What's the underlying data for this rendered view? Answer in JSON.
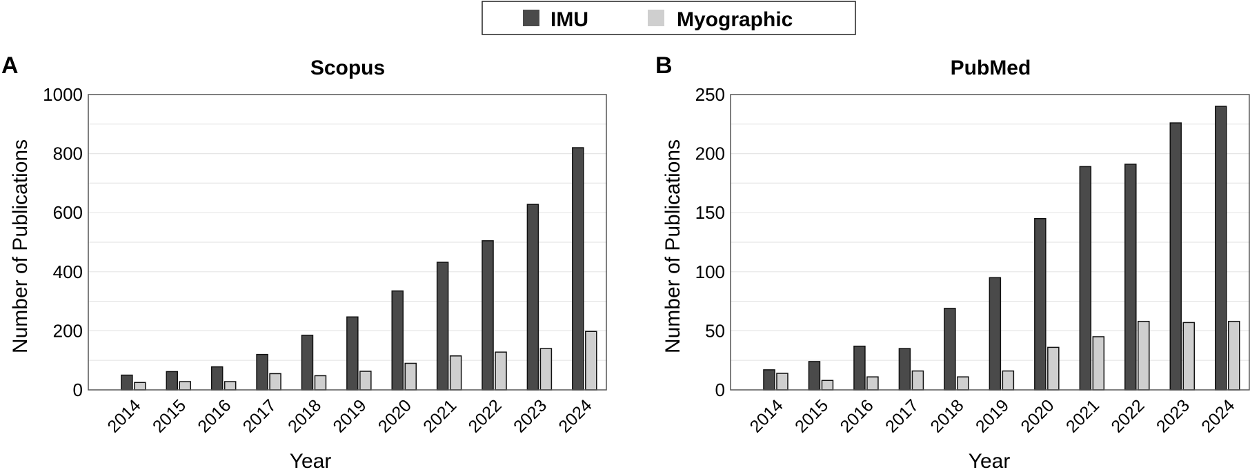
{
  "legend": {
    "items": [
      {
        "label": "IMU",
        "color": "#4a4a4a"
      },
      {
        "label": "Myographic",
        "color": "#cfcfcf"
      }
    ]
  },
  "chart_data": [
    {
      "type": "bar",
      "panel": "A",
      "title": "Scopus",
      "xlabel": "Year",
      "ylabel": "Number of Publications",
      "ylim": [
        0,
        1000
      ],
      "yticks": [
        0,
        200,
        400,
        600,
        800,
        1000
      ],
      "categories": [
        "2014",
        "2015",
        "2016",
        "2017",
        "2018",
        "2019",
        "2020",
        "2021",
        "2022",
        "2023",
        "2024"
      ],
      "series": [
        {
          "name": "IMU",
          "color": "#4a4a4a",
          "values": [
            50,
            62,
            78,
            120,
            185,
            247,
            335,
            432,
            505,
            628,
            820
          ]
        },
        {
          "name": "Myographic",
          "color": "#cfcfcf",
          "values": [
            25,
            28,
            28,
            55,
            48,
            63,
            90,
            115,
            128,
            140,
            198
          ]
        }
      ],
      "grid": true
    },
    {
      "type": "bar",
      "panel": "B",
      "title": "PubMed",
      "xlabel": "Year",
      "ylabel": "Number of Publications",
      "ylim": [
        0,
        250
      ],
      "yticks": [
        0,
        50,
        100,
        150,
        200,
        250
      ],
      "categories": [
        "2014",
        "2015",
        "2016",
        "2017",
        "2018",
        "2019",
        "2020",
        "2021",
        "2022",
        "2023",
        "2024"
      ],
      "series": [
        {
          "name": "IMU",
          "color": "#4a4a4a",
          "values": [
            17,
            24,
            37,
            35,
            69,
            95,
            145,
            189,
            191,
            226,
            240
          ]
        },
        {
          "name": "Myographic",
          "color": "#cfcfcf",
          "values": [
            14,
            8,
            11,
            16,
            11,
            16,
            36,
            45,
            58,
            57,
            58
          ]
        }
      ],
      "grid": true
    }
  ]
}
